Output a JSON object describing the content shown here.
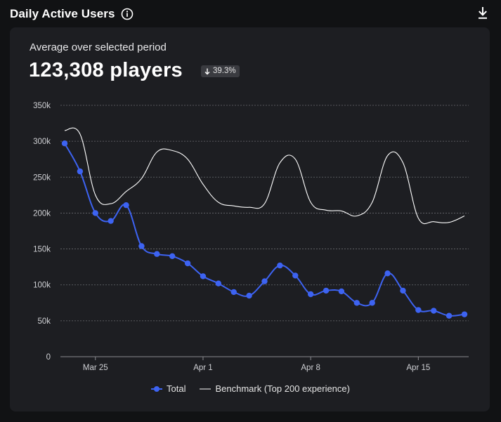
{
  "header": {
    "title": "Daily Active Users"
  },
  "summary": {
    "caption": "Average over selected period",
    "value": "123,308 players",
    "change": "39.3%",
    "change_direction": "down"
  },
  "colors": {
    "total": "#3d63f2",
    "benchmark": "#ffffff",
    "grid": "#6a6b70",
    "axis_text": "#cfd0d4"
  },
  "icons": {
    "info": "info-icon",
    "download": "download-icon",
    "change": "arrow-down-icon"
  },
  "chart_data": {
    "type": "line",
    "x_tick_labels": [
      "Mar 25",
      "Apr 1",
      "Apr 8",
      "Apr 15"
    ],
    "x_tick_positions": [
      2,
      9,
      16,
      23
    ],
    "x": [
      0,
      1,
      2,
      3,
      4,
      5,
      6,
      7,
      8,
      9,
      10,
      11,
      12,
      13,
      14,
      15,
      16,
      17,
      18,
      19,
      20,
      21,
      22,
      23,
      24,
      25,
      26
    ],
    "ylim": [
      0,
      350000
    ],
    "y_ticks": [
      0,
      50000,
      100000,
      150000,
      200000,
      250000,
      300000,
      350000
    ],
    "y_tick_labels": [
      "0",
      "50k",
      "100k",
      "150k",
      "200k",
      "250k",
      "300k",
      "350k"
    ],
    "grid": true,
    "legend": "bottom",
    "series": [
      {
        "name": "Total",
        "markers": true,
        "values": [
          297000,
          258000,
          200000,
          189000,
          211000,
          154000,
          143000,
          140000,
          130000,
          112000,
          102000,
          90000,
          85000,
          105000,
          127000,
          113000,
          87000,
          92000,
          91000,
          75000,
          75000,
          116000,
          92000,
          65000,
          64000,
          57000,
          59000
        ]
      },
      {
        "name": "Benchmark (Top 200 experience)",
        "markers": false,
        "values": [
          315000,
          310000,
          225000,
          213000,
          230000,
          248000,
          285000,
          287000,
          275000,
          240000,
          215000,
          210000,
          208000,
          213000,
          270000,
          275000,
          215000,
          204000,
          203000,
          196000,
          215000,
          280000,
          270000,
          193000,
          188000,
          187000,
          196000
        ]
      }
    ]
  }
}
